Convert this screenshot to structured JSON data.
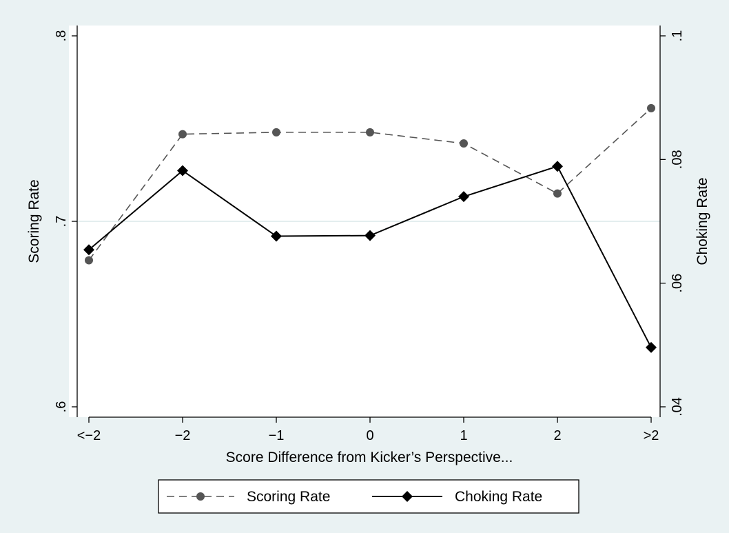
{
  "chart_data": {
    "type": "line",
    "categories": [
      "<−2",
      "−2",
      "−1",
      "0",
      "1",
      "2",
      ">2"
    ],
    "xlabel": "Score Difference from Kicker’s Perspective...",
    "ylabel_left": "Scoring Rate",
    "ylabel_right": "Choking Rate",
    "ylim_left": [
      0.6,
      0.8
    ],
    "ylim_right": [
      0.04,
      0.1
    ],
    "yticks_left": [
      {
        "value": 0.6,
        "label": ".6"
      },
      {
        "value": 0.7,
        "label": ".7"
      },
      {
        "value": 0.8,
        "label": ".8"
      }
    ],
    "yticks_right": [
      {
        "value": 0.04,
        "label": ".04"
      },
      {
        "value": 0.06,
        "label": ".06"
      },
      {
        "value": 0.08,
        "label": ".08"
      },
      {
        "value": 0.1,
        "label": ".1"
      }
    ],
    "grid": "horizontal at .7",
    "series": [
      {
        "name": "Scoring Rate",
        "axis": "left",
        "values": [
          0.679,
          0.747,
          0.748,
          0.748,
          0.742,
          0.715,
          0.761
        ],
        "color": "#555555",
        "line_style": "dashed",
        "marker": "circle"
      },
      {
        "name": "Choking Rate",
        "axis": "right",
        "values": [
          0.0654,
          0.0782,
          0.0676,
          0.0677,
          0.074,
          0.0789,
          0.0496
        ],
        "color": "#000000",
        "line_style": "solid",
        "marker": "diamond"
      }
    ],
    "legend_position": "bottom"
  }
}
